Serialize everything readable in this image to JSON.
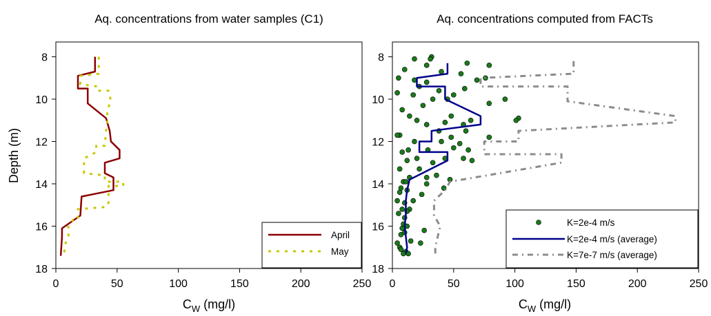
{
  "chart_data": [
    {
      "type": "line",
      "title": "Aq. concentrations from water samples (C1)",
      "xlabel_main": "C",
      "xlabel_sub": "W",
      "xlabel_unit": " (mg/l)",
      "ylabel": "Depth (m)",
      "xlim": [
        0,
        250
      ],
      "ylim": [
        18,
        7.3
      ],
      "y_inverted": true,
      "xticks": [
        0,
        50,
        100,
        150,
        200,
        250
      ],
      "yticks": [
        8,
        10,
        12,
        14,
        16,
        18
      ],
      "legend_position": "bottom-right",
      "series": [
        {
          "name": "April",
          "style": "solid",
          "color": "#8b0000",
          "x": [
            32,
            32,
            18,
            18,
            26,
            26,
            41,
            44,
            45,
            52,
            52,
            40,
            40,
            47,
            47,
            21,
            20,
            5,
            5,
            4
          ],
          "y": [
            8.0,
            8.7,
            8.9,
            9.5,
            9.5,
            10.2,
            10.9,
            11.5,
            12.0,
            12.4,
            12.8,
            13.0,
            13.5,
            13.7,
            14.3,
            14.6,
            15.5,
            16.1,
            16.5,
            17.4
          ]
        },
        {
          "name": "May",
          "style": "dotted",
          "color": "#c8c800",
          "x": [
            35,
            35,
            20,
            20,
            34,
            34,
            43,
            45,
            42,
            42,
            41,
            40,
            33,
            33,
            23,
            23,
            23,
            40,
            40,
            55,
            55,
            43,
            43,
            40,
            40,
            18,
            18,
            14,
            12,
            10,
            11,
            10,
            8,
            7,
            7
          ],
          "y": [
            8.0,
            8.8,
            8.9,
            9.3,
            9.4,
            9.6,
            9.6,
            10.1,
            10.5,
            11.1,
            11.5,
            12.2,
            12.2,
            12.5,
            12.8,
            13.2,
            13.5,
            13.6,
            13.9,
            13.9,
            14.1,
            14.1,
            14.9,
            15.0,
            15.1,
            15.2,
            15.7,
            15.7,
            15.9,
            16.0,
            16.2,
            16.5,
            16.8,
            17.1,
            17.4
          ]
        }
      ]
    },
    {
      "type": "scatter",
      "title": "Aq. concentrations computed from FACTs",
      "xlabel_main": "C",
      "xlabel_sub": "W",
      "xlabel_unit": " (mg/l)",
      "ylabel": "",
      "xlim": [
        0,
        250
      ],
      "ylim": [
        18,
        7.3
      ],
      "y_inverted": true,
      "xticks": [
        0,
        50,
        100,
        150,
        200,
        250
      ],
      "yticks": [
        8,
        10,
        12,
        14,
        16,
        18
      ],
      "legend_position": "bottom-right",
      "series": [
        {
          "name": "K=2e-4 m/s",
          "style": "markers",
          "color": "#1a7a1a",
          "points": [
            [
              32,
              8.0
            ],
            [
              31,
              8.1
            ],
            [
              18,
              8.1
            ],
            [
              61,
              8.3
            ],
            [
              79,
              8.4
            ],
            [
              28,
              8.4
            ],
            [
              10,
              8.6
            ],
            [
              40,
              8.7
            ],
            [
              56,
              8.8
            ],
            [
              76,
              9.0
            ],
            [
              5,
              9.0
            ],
            [
              18,
              9.1
            ],
            [
              69,
              9.1
            ],
            [
              28,
              9.2
            ],
            [
              22,
              9.4
            ],
            [
              59,
              9.5
            ],
            [
              38,
              9.6
            ],
            [
              4,
              9.7
            ],
            [
              17,
              9.8
            ],
            [
              50,
              9.8
            ],
            [
              45,
              10.0
            ],
            [
              33,
              10.0
            ],
            [
              92,
              10.0
            ],
            [
              79,
              10.2
            ],
            [
              25,
              10.3
            ],
            [
              8,
              10.5
            ],
            [
              14,
              10.8
            ],
            [
              48,
              10.8
            ],
            [
              103,
              10.9
            ],
            [
              101,
              11.0
            ],
            [
              20,
              11.0
            ],
            [
              64,
              11.0
            ],
            [
              43,
              11.1
            ],
            [
              58,
              11.2
            ],
            [
              28,
              11.2
            ],
            [
              60,
              11.5
            ],
            [
              38,
              11.5
            ],
            [
              6,
              11.7
            ],
            [
              4,
              11.7
            ],
            [
              79,
              11.8
            ],
            [
              48,
              11.8
            ],
            [
              40,
              12.0
            ],
            [
              18,
              12.0
            ],
            [
              55,
              12.1
            ],
            [
              13,
              12.4
            ],
            [
              29,
              12.4
            ],
            [
              50,
              12.3
            ],
            [
              62,
              12.4
            ],
            [
              8,
              12.5
            ],
            [
              20,
              12.8
            ],
            [
              43,
              12.8
            ],
            [
              58,
              12.8
            ],
            [
              12,
              12.9
            ],
            [
              65,
              12.9
            ],
            [
              33,
              13.0
            ],
            [
              22,
              13.3
            ],
            [
              6,
              13.3
            ],
            [
              36,
              13.6
            ],
            [
              28,
              13.7
            ],
            [
              14,
              13.7
            ],
            [
              47,
              13.8
            ],
            [
              9,
              13.9
            ],
            [
              11,
              13.9
            ],
            [
              28,
              14.0
            ],
            [
              7,
              14.2
            ],
            [
              42,
              14.2
            ],
            [
              12,
              14.3
            ],
            [
              6,
              14.4
            ],
            [
              24,
              14.5
            ],
            [
              17,
              14.8
            ],
            [
              4,
              14.8
            ],
            [
              10,
              14.9
            ],
            [
              8,
              15.2
            ],
            [
              14,
              15.2
            ],
            [
              12,
              15.3
            ],
            [
              5,
              15.4
            ],
            [
              10,
              15.6
            ],
            [
              9,
              15.9
            ],
            [
              12,
              16.0
            ],
            [
              8,
              16.1
            ],
            [
              26,
              16.2
            ],
            [
              10,
              16.3
            ],
            [
              7,
              16.4
            ],
            [
              15,
              16.7
            ],
            [
              23,
              16.8
            ],
            [
              4,
              16.8
            ],
            [
              6,
              17.0
            ],
            [
              11,
              17.2
            ],
            [
              9,
              17.3
            ],
            [
              13,
              17.3
            ],
            [
              7,
              17.1
            ]
          ]
        },
        {
          "name": "K=2e-4 m/s (average)",
          "style": "solid",
          "color": "#00008b",
          "x": [
            45,
            45,
            20,
            20,
            43,
            43,
            72,
            72,
            32,
            32,
            22,
            22,
            45,
            45,
            14,
            12,
            11,
            11,
            10,
            12,
            11
          ],
          "y": [
            8.3,
            8.8,
            9.0,
            9.4,
            9.4,
            10.0,
            10.8,
            11.2,
            11.5,
            12.0,
            12.0,
            12.5,
            12.5,
            12.9,
            13.8,
            14.3,
            14.8,
            15.5,
            16.0,
            17.0,
            17.3
          ]
        },
        {
          "name": "K=7e-7 m/s (average)",
          "style": "dashdot",
          "color": "#8c8c8c",
          "x": [
            148,
            148,
            72,
            72,
            143,
            143,
            231,
            231,
            103,
            103,
            75,
            75,
            138,
            138,
            47,
            43,
            34,
            34,
            39,
            37,
            35,
            35
          ],
          "y": [
            8.2,
            8.8,
            9.0,
            9.4,
            9.4,
            10.1,
            10.8,
            11.1,
            11.5,
            12.0,
            12.0,
            12.6,
            12.6,
            13.0,
            13.9,
            14.3,
            14.8,
            15.5,
            16.0,
            16.5,
            17.0,
            17.3
          ]
        }
      ]
    }
  ]
}
